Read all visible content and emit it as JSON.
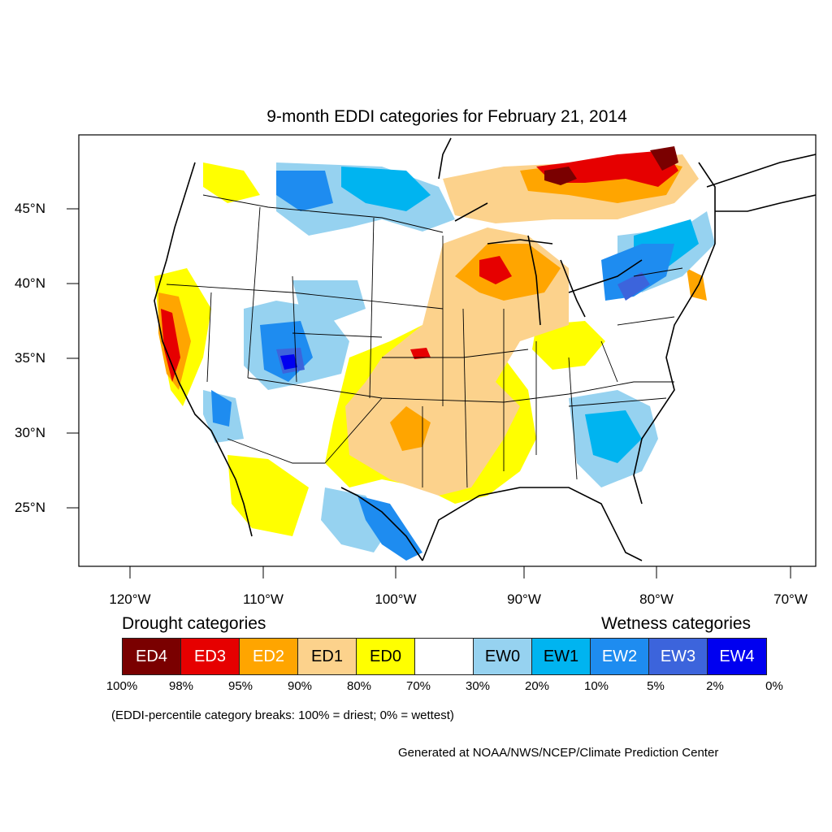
{
  "title": "9-month EDDI categories for February 21, 2014",
  "lat_labels": [
    "45°N",
    "40°N",
    "35°N",
    "30°N",
    "25°N"
  ],
  "lon_labels": [
    "120°W",
    "110°W",
    "100°W",
    "90°W",
    "80°W",
    "70°W"
  ],
  "drought_heading": "Drought categories",
  "wetness_heading": "Wetness categories",
  "categories": [
    {
      "label": "ED4",
      "color": "#7a0000",
      "text_color": "#ffffff"
    },
    {
      "label": "ED3",
      "color": "#e60000",
      "text_color": "#ffffff"
    },
    {
      "label": "ED2",
      "color": "#ffa500",
      "text_color": "#ffffff"
    },
    {
      "label": "ED1",
      "color": "#fcd28c",
      "text_color": "#000000"
    },
    {
      "label": "ED0",
      "color": "#ffff00",
      "text_color": "#000000"
    },
    {
      "label": "",
      "color": "#ffffff",
      "text_color": "#000000"
    },
    {
      "label": "EW0",
      "color": "#96d2f0",
      "text_color": "#000000"
    },
    {
      "label": "EW1",
      "color": "#00b4f0",
      "text_color": "#000000"
    },
    {
      "label": "EW2",
      "color": "#1e8cf0",
      "text_color": "#ffffff"
    },
    {
      "label": "EW3",
      "color": "#3c64dc",
      "text_color": "#ffffff"
    },
    {
      "label": "EW4",
      "color": "#0000f0",
      "text_color": "#ffffff"
    }
  ],
  "breaks": [
    "100%",
    "98%",
    "95%",
    "90%",
    "80%",
    "70%",
    "30%",
    "20%",
    "10%",
    "5%",
    "2%",
    "0%"
  ],
  "note": "(EDDI-percentile category breaks: 100% = driest; 0% = wettest)",
  "credit": "Generated at NOAA/NWS/NCEP/Climate Prediction Center"
}
